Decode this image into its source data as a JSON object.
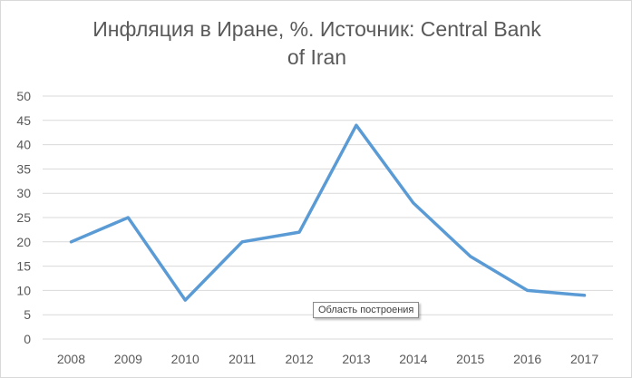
{
  "chart_data": {
    "type": "line",
    "title_lines": [
      "Инфляция в Иране, %. Источник: Central Bank",
      "of Iran"
    ],
    "categories": [
      "2008",
      "2009",
      "2010",
      "2011",
      "2012",
      "2013",
      "2014",
      "2015",
      "2016",
      "2017"
    ],
    "series": [
      {
        "values": [
          20,
          25,
          8,
          20,
          22,
          44,
          28,
          17,
          10,
          9
        ],
        "color": "#5b9bd5"
      }
    ],
    "ylim": [
      0,
      50
    ],
    "yticks": [
      "0",
      "5",
      "10",
      "15",
      "20",
      "25",
      "30",
      "35",
      "40",
      "45",
      "50"
    ],
    "grid": true,
    "gridline_color": "#d9d9d9",
    "legend": "none"
  },
  "tooltip": {
    "text": "Область построения"
  }
}
